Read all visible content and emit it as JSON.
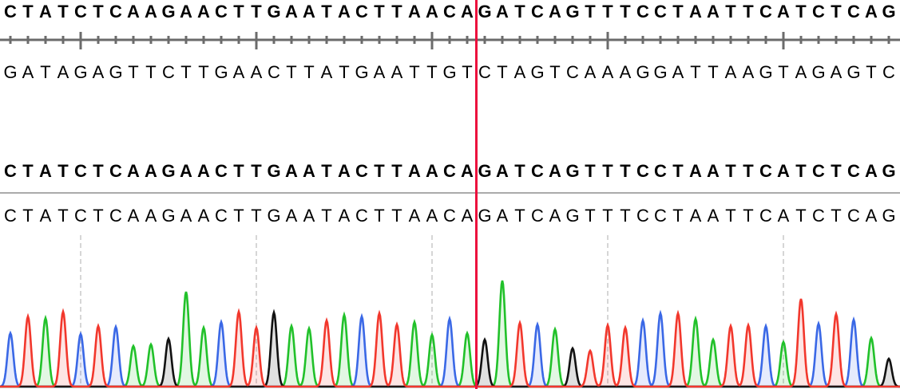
{
  "reference": {
    "forward": "CTATCTCAAGAACTTGAATACTTAACAGATCAGTTTCCTAATTCATCTCAG",
    "complement": "GATAGAGTTCTTGAACTTATGAATTGTCTAGTCAAAGGATTAAGTAGAGTC"
  },
  "read": {
    "consensus": "CTATCTCAAGAACTTGAATACTTAACAGATCAGTTTCCTAATTCATCTCAG",
    "calls": "CTATCTCAAGAACTTGAATACTTAACAGATCAGTTTCCTAATTCATCTCAG"
  },
  "chromatogram": {
    "peak_heights": [
      67,
      88,
      86,
      94,
      66,
      76,
      75,
      51,
      53,
      60,
      119,
      74,
      81,
      94,
      74,
      93,
      76,
      73,
      83,
      90,
      88,
      92,
      78,
      81,
      65,
      85,
      67,
      59,
      133,
      80,
      78,
      72,
      48,
      45,
      77,
      74,
      83,
      92,
      92,
      85,
      59,
      76,
      77,
      76,
      56,
      110,
      79,
      91,
      84,
      61,
      35
    ],
    "base_colors": {
      "A": "#21c12a",
      "C": "#3a68e6",
      "G": "#111111",
      "T": "#f2372c"
    },
    "major_tick_every": 10
  },
  "cursor": {
    "after_base": 27,
    "color": "#ec0f3c"
  }
}
